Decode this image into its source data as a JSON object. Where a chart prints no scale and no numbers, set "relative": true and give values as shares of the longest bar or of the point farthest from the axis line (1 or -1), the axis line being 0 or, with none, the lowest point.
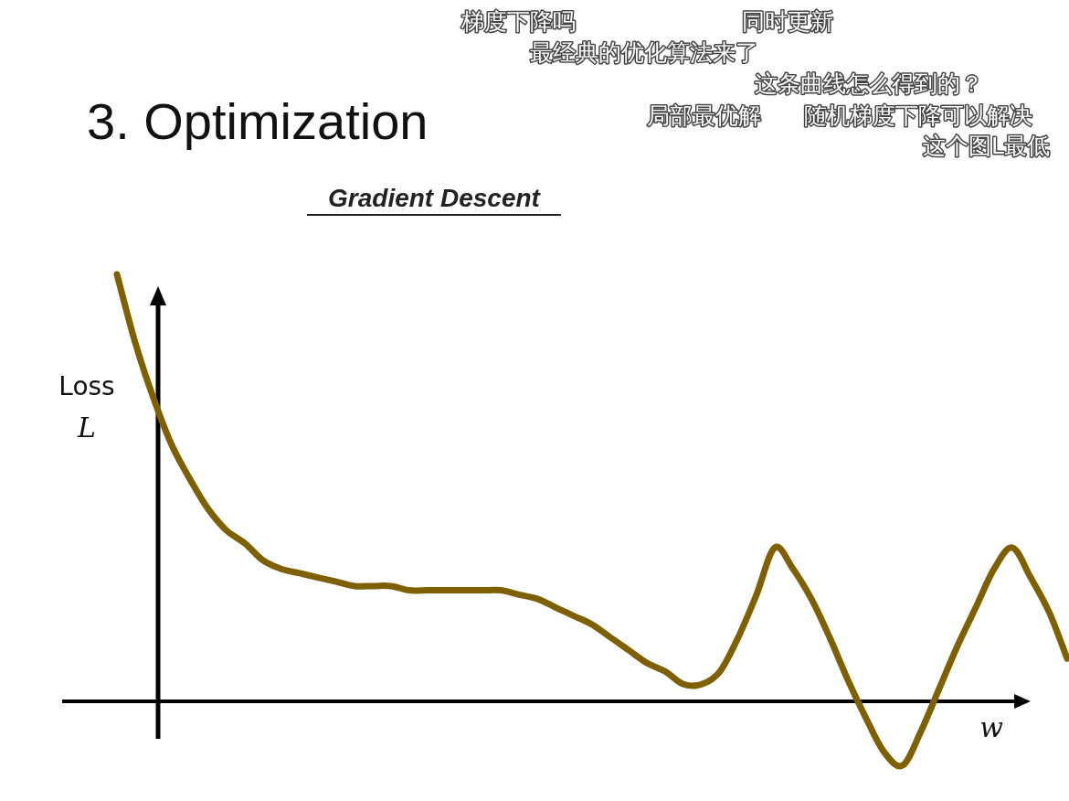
{
  "chart_data": {
    "type": "line",
    "title": "3. Optimization",
    "subtitle": "Gradient Descent",
    "xlabel": "w",
    "ylabel": "Loss L",
    "relative": true,
    "categories": [
      null,
      null,
      null,
      null,
      null,
      null,
      null,
      null,
      null,
      null,
      null,
      null,
      null,
      null,
      null,
      null,
      null,
      null,
      null,
      null,
      null,
      null,
      null,
      null,
      null,
      null,
      null,
      null,
      null,
      null,
      null,
      null,
      null,
      null,
      null,
      null,
      null,
      null,
      null,
      null,
      null,
      null,
      null,
      null,
      null,
      null,
      null,
      null,
      null,
      null,
      null,
      null,
      null
    ],
    "series": [
      {
        "color": "#7f6000",
        "values": [
          1.0,
          0.84,
          0.71,
          0.6,
          0.52,
          0.45,
          0.4,
          0.37,
          0.33,
          0.31,
          0.3,
          0.29,
          0.28,
          0.27,
          0.27,
          0.27,
          0.26,
          0.26,
          0.26,
          0.26,
          0.26,
          0.26,
          0.25,
          0.24,
          0.22,
          0.2,
          0.18,
          0.15,
          0.12,
          0.09,
          0.07,
          0.04,
          0.04,
          0.07,
          0.15,
          0.25,
          0.36,
          0.31,
          0.24,
          0.15,
          0.05,
          -0.04,
          -0.12,
          -0.15,
          -0.07,
          0.03,
          0.13,
          0.22,
          0.31,
          0.36,
          0.29,
          0.21,
          0.1
        ]
      }
    ],
    "annotations": [
      "梯度下降吗",
      "同时更新",
      "最经典的优化算法来了",
      "这条曲线怎么得到的？",
      "局部最优解",
      "随机梯度下降可以解决",
      "这个图L最低"
    ]
  }
}
